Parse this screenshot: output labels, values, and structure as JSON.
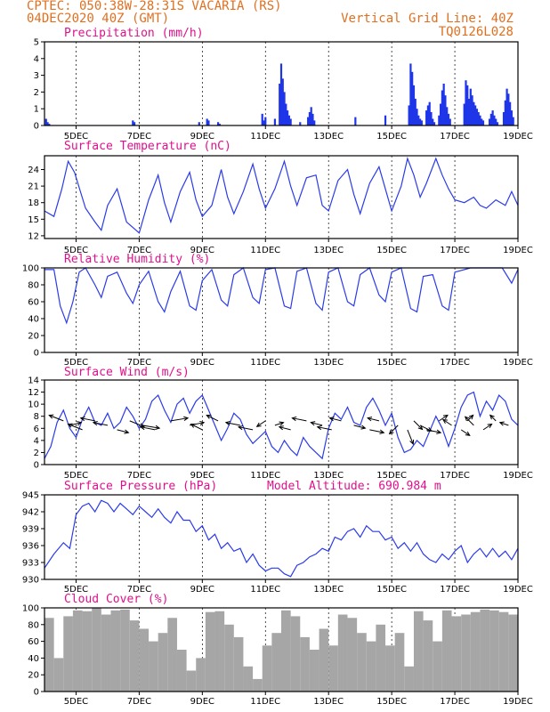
{
  "header": {
    "line1": "CPTEC:   050:38W-28:31S   VACARIA (RS)",
    "line2": "04DEC2020 40Z (GMT)",
    "right1": "Vertical Grid Line: 40Z",
    "right2": "TQ0126L028"
  },
  "colors": {
    "line": "#2b3be8",
    "bars": "#1f35e8",
    "cloud": "#a6a6a6",
    "title": "#e0108c",
    "header": "#e07020"
  },
  "x_axis": {
    "start_day": 4,
    "end_day": 19,
    "tick_days": [
      5,
      7,
      9,
      11,
      13,
      15,
      17,
      19
    ],
    "tick_labels": [
      "5DEC",
      "7DEC",
      "9DEC",
      "11DEC",
      "13DEC",
      "15DEC",
      "17DEC",
      "19DEC"
    ]
  },
  "chart_data": [
    {
      "type": "bar",
      "title": "Precipitation (mm/h)",
      "ylim": [
        0,
        5
      ],
      "yticks": [
        0,
        1,
        2,
        3,
        4,
        5
      ],
      "x": [
        4.05,
        4.1,
        4.15,
        6.8,
        6.85,
        8.9,
        9.15,
        9.2,
        9.5,
        9.55,
        10.9,
        10.95,
        11.0,
        11.3,
        11.45,
        11.5,
        11.55,
        11.6,
        11.65,
        11.7,
        11.75,
        11.8,
        12.1,
        12.35,
        12.4,
        12.45,
        12.5,
        12.55,
        13.85,
        14.8,
        15.55,
        15.6,
        15.65,
        15.7,
        15.75,
        15.8,
        15.85,
        15.9,
        15.95,
        16.1,
        16.15,
        16.2,
        16.25,
        16.3,
        16.35,
        16.5,
        16.55,
        16.6,
        16.65,
        16.7,
        16.75,
        16.8,
        16.85,
        17.3,
        17.35,
        17.4,
        17.45,
        17.5,
        17.55,
        17.6,
        17.65,
        17.7,
        17.75,
        17.8,
        17.85,
        17.9,
        18.1,
        18.15,
        18.2,
        18.25,
        18.3,
        18.35,
        18.55,
        18.6,
        18.65,
        18.7,
        18.75,
        18.8,
        18.85
      ],
      "values": [
        0.4,
        0.2,
        0.1,
        0.3,
        0.2,
        0.2,
        0.4,
        0.3,
        0.2,
        0.1,
        0.7,
        0.3,
        0.5,
        0.4,
        2.5,
        3.7,
        2.8,
        2.0,
        1.3,
        0.9,
        0.6,
        0.4,
        0.2,
        0.5,
        0.8,
        1.1,
        0.7,
        0.3,
        0.5,
        0.6,
        1.2,
        3.7,
        3.2,
        2.4,
        1.6,
        1.0,
        0.6,
        0.4,
        0.3,
        0.9,
        1.2,
        1.4,
        0.8,
        0.4,
        0.2,
        0.6,
        1.3,
        2.1,
        2.5,
        1.8,
        1.1,
        0.7,
        0.4,
        1.3,
        2.7,
        2.4,
        1.6,
        2.2,
        1.8,
        1.4,
        1.2,
        1.0,
        0.8,
        0.6,
        0.4,
        0.3,
        0.4,
        0.7,
        0.9,
        0.6,
        0.4,
        0.2,
        0.8,
        1.5,
        2.2,
        1.9,
        1.4,
        0.9,
        0.5
      ]
    },
    {
      "type": "line",
      "title": "Surface Temperature (nC)",
      "ylim": [
        11.5,
        26.5
      ],
      "yticks": [
        12,
        15,
        18,
        21,
        24
      ],
      "x": [
        4.0,
        4.3,
        4.55,
        4.75,
        4.95,
        5.3,
        5.6,
        5.8,
        6.0,
        6.3,
        6.6,
        6.8,
        7.0,
        7.3,
        7.6,
        7.8,
        8.0,
        8.3,
        8.6,
        8.8,
        9.0,
        9.3,
        9.6,
        9.8,
        10.0,
        10.3,
        10.6,
        10.8,
        11.0,
        11.3,
        11.6,
        11.8,
        12.0,
        12.3,
        12.6,
        12.8,
        13.0,
        13.3,
        13.6,
        13.8,
        14.0,
        14.3,
        14.6,
        14.8,
        15.0,
        15.3,
        15.5,
        15.7,
        15.9,
        16.1,
        16.4,
        16.6,
        16.8,
        17.0,
        17.3,
        17.6,
        17.8,
        18.0,
        18.3,
        18.6,
        18.8,
        19.0
      ],
      "values": [
        16.5,
        15.5,
        20.5,
        25.5,
        23.5,
        17.0,
        14.5,
        13.0,
        17.5,
        20.5,
        14.5,
        13.5,
        12.5,
        18.5,
        23.0,
        18.0,
        14.5,
        20.0,
        23.5,
        18.5,
        15.5,
        17.5,
        24.0,
        19.0,
        16.0,
        20.0,
        25.0,
        20.5,
        17.0,
        20.5,
        25.5,
        21.0,
        17.5,
        22.5,
        23.0,
        17.5,
        16.5,
        22.0,
        24.0,
        19.5,
        16.0,
        21.5,
        24.5,
        20.5,
        16.5,
        21.0,
        26.0,
        23.0,
        19.0,
        21.5,
        26.0,
        23.0,
        20.5,
        18.5,
        18.0,
        19.0,
        17.5,
        17.0,
        18.5,
        17.5,
        20.0,
        17.5
      ]
    },
    {
      "type": "line",
      "title": "Relative Humidity (%)",
      "ylim": [
        0,
        100
      ],
      "yticks": [
        0,
        20,
        40,
        60,
        80,
        100
      ],
      "x": [
        4.0,
        4.3,
        4.5,
        4.7,
        4.9,
        5.1,
        5.3,
        5.6,
        5.8,
        6.0,
        6.3,
        6.6,
        6.8,
        7.0,
        7.3,
        7.6,
        7.8,
        8.0,
        8.3,
        8.6,
        8.8,
        9.0,
        9.3,
        9.6,
        9.8,
        10.0,
        10.3,
        10.6,
        10.8,
        11.0,
        11.3,
        11.6,
        11.8,
        12.0,
        12.3,
        12.6,
        12.8,
        13.0,
        13.3,
        13.6,
        13.8,
        14.0,
        14.3,
        14.6,
        14.8,
        15.0,
        15.3,
        15.6,
        15.8,
        16.0,
        16.3,
        16.6,
        16.8,
        17.0,
        17.5,
        18.0,
        18.5,
        18.8,
        19.0
      ],
      "values": [
        98,
        98,
        55,
        35,
        60,
        95,
        100,
        80,
        65,
        90,
        95,
        70,
        58,
        80,
        96,
        60,
        48,
        72,
        96,
        55,
        50,
        85,
        98,
        62,
        55,
        92,
        100,
        65,
        58,
        98,
        100,
        55,
        52,
        96,
        100,
        58,
        50,
        95,
        100,
        60,
        55,
        92,
        100,
        68,
        60,
        95,
        100,
        52,
        48,
        90,
        92,
        55,
        50,
        95,
        100,
        100,
        100,
        82,
        98
      ]
    },
    {
      "type": "line",
      "title": "Surface Wind (m/s)",
      "ylim": [
        0,
        14
      ],
      "yticks": [
        0,
        2,
        4,
        6,
        8,
        10,
        12,
        14
      ],
      "x": [
        4.0,
        4.2,
        4.4,
        4.6,
        4.8,
        5.0,
        5.2,
        5.4,
        5.6,
        5.8,
        6.0,
        6.2,
        6.4,
        6.6,
        6.8,
        7.0,
        7.2,
        7.4,
        7.6,
        7.8,
        8.0,
        8.2,
        8.4,
        8.6,
        8.8,
        9.0,
        9.2,
        9.4,
        9.6,
        9.8,
        10.0,
        10.2,
        10.4,
        10.6,
        10.8,
        11.0,
        11.2,
        11.4,
        11.6,
        11.8,
        12.0,
        12.2,
        12.4,
        12.6,
        12.8,
        13.0,
        13.2,
        13.4,
        13.6,
        13.8,
        14.0,
        14.2,
        14.4,
        14.6,
        14.8,
        15.0,
        15.2,
        15.4,
        15.6,
        15.8,
        16.0,
        16.2,
        16.4,
        16.6,
        16.8,
        17.0,
        17.2,
        17.4,
        17.6,
        17.8,
        18.0,
        18.2,
        18.4,
        18.6,
        18.8,
        19.0
      ],
      "values": [
        1.0,
        3.0,
        7.0,
        9.0,
        6.0,
        4.5,
        7.5,
        9.5,
        7.0,
        6.5,
        8.5,
        6.0,
        7.0,
        9.5,
        8.0,
        6.0,
        7.5,
        10.5,
        11.5,
        9.0,
        7.0,
        10.0,
        11.0,
        8.5,
        10.5,
        11.5,
        9.0,
        6.5,
        4.0,
        6.0,
        8.5,
        7.5,
        5.0,
        3.5,
        4.5,
        5.5,
        3.0,
        2.0,
        4.0,
        2.5,
        1.5,
        4.5,
        3.0,
        2.0,
        1.0,
        6.0,
        8.5,
        7.5,
        9.5,
        7.0,
        6.5,
        9.5,
        11.0,
        9.0,
        6.5,
        8.5,
        4.5,
        2.0,
        2.5,
        4.0,
        3.0,
        5.5,
        8.0,
        6.0,
        3.0,
        6.0,
        9.5,
        11.5,
        12.0,
        8.0,
        10.5,
        9.0,
        11.5,
        10.5,
        7.5,
        6.5
      ],
      "arrows": {
        "x": [
          4.6,
          4.8,
          5.2,
          5.6,
          6.0,
          6.3,
          6.7,
          7.1,
          7.5,
          8.0,
          8.6,
          9.0,
          9.5,
          10.2,
          10.6,
          11.0,
          11.3,
          11.8,
          12.3,
          12.8,
          13.1,
          13.4,
          13.8,
          14.3,
          14.6,
          15.2,
          15.5,
          15.7,
          15.9,
          16.1,
          16.5,
          16.9,
          17.2,
          17.4,
          17.6,
          17.9,
          18.3,
          18.7
        ],
        "u": [
          -5,
          4,
          -5,
          -5,
          -5,
          4,
          5,
          6,
          -5,
          6,
          5,
          -4,
          -4,
          -5,
          -5,
          -3,
          3,
          -4,
          -5,
          -4,
          -5,
          -4,
          4,
          5,
          -4,
          -3,
          2,
          3,
          4,
          5,
          3,
          -3,
          3,
          2,
          -3,
          3,
          -2,
          -3
        ],
        "v": [
          2,
          1,
          2,
          1,
          1,
          -1,
          -2,
          -1,
          1,
          1,
          1,
          2,
          2,
          1,
          1,
          -2,
          1,
          1,
          1,
          1,
          1,
          1,
          -1,
          -1,
          1,
          -3,
          -5,
          -3,
          -2,
          -1,
          2,
          2,
          -2,
          2,
          3,
          2,
          2,
          1
        ]
      }
    },
    {
      "type": "line",
      "title": "Surface Pressure (hPa)",
      "annotation": "Model Altitude: 690.984 m",
      "ylim": [
        930,
        945
      ],
      "yticks": [
        930,
        933,
        936,
        939,
        942,
        945
      ],
      "x": [
        4.0,
        4.3,
        4.6,
        4.8,
        5.0,
        5.2,
        5.4,
        5.6,
        5.8,
        6.0,
        6.2,
        6.4,
        6.6,
        6.8,
        7.0,
        7.2,
        7.4,
        7.6,
        7.8,
        8.0,
        8.2,
        8.4,
        8.6,
        8.8,
        9.0,
        9.2,
        9.4,
        9.6,
        9.8,
        10.0,
        10.2,
        10.4,
        10.6,
        10.8,
        11.0,
        11.2,
        11.4,
        11.6,
        11.8,
        12.0,
        12.2,
        12.4,
        12.6,
        12.8,
        13.0,
        13.2,
        13.4,
        13.6,
        13.8,
        14.0,
        14.2,
        14.4,
        14.6,
        14.8,
        15.0,
        15.2,
        15.4,
        15.6,
        15.8,
        16.0,
        16.2,
        16.4,
        16.6,
        16.8,
        17.0,
        17.2,
        17.4,
        17.6,
        17.8,
        18.0,
        18.2,
        18.4,
        18.6,
        18.8,
        19.0
      ],
      "values": [
        932.0,
        934.5,
        936.5,
        935.5,
        941.5,
        943.0,
        943.5,
        942.0,
        944.0,
        943.5,
        942.0,
        943.5,
        942.5,
        941.5,
        943.0,
        942.0,
        941.0,
        942.5,
        941.0,
        940.0,
        942.0,
        940.5,
        940.5,
        938.5,
        939.5,
        937.0,
        938.0,
        935.5,
        936.5,
        935.0,
        935.5,
        933.0,
        934.5,
        932.5,
        931.5,
        932.0,
        932.0,
        931.0,
        930.5,
        932.5,
        933.0,
        934.0,
        934.5,
        935.5,
        935.0,
        937.5,
        937.0,
        938.5,
        939.0,
        937.5,
        939.5,
        938.5,
        938.5,
        937.0,
        937.5,
        935.5,
        936.5,
        935.0,
        936.5,
        934.5,
        933.5,
        933.0,
        934.5,
        933.5,
        935.0,
        936.0,
        933.0,
        934.5,
        935.5,
        934.0,
        935.5,
        934.0,
        935.0,
        933.5,
        935.5
      ]
    },
    {
      "type": "bar",
      "title": "Cloud Cover (%)",
      "ylim": [
        0,
        100
      ],
      "yticks": [
        0,
        20,
        40,
        60,
        80,
        100
      ],
      "x": [
        4.0,
        4.3,
        4.6,
        4.9,
        5.2,
        5.5,
        5.8,
        6.1,
        6.4,
        6.7,
        7.0,
        7.3,
        7.6,
        7.9,
        8.2,
        8.5,
        8.8,
        9.1,
        9.4,
        9.7,
        10.0,
        10.3,
        10.6,
        10.9,
        11.2,
        11.5,
        11.8,
        12.1,
        12.4,
        12.7,
        13.0,
        13.3,
        13.6,
        13.9,
        14.2,
        14.5,
        14.8,
        15.1,
        15.4,
        15.7,
        16.0,
        16.3,
        16.6,
        16.9,
        17.2,
        17.5,
        17.8,
        18.1,
        18.4,
        18.7
      ],
      "values": [
        88,
        40,
        90,
        97,
        96,
        100,
        92,
        97,
        98,
        85,
        75,
        60,
        70,
        88,
        50,
        25,
        40,
        95,
        96,
        80,
        65,
        30,
        15,
        55,
        70,
        97,
        90,
        65,
        50,
        75,
        55,
        92,
        88,
        70,
        60,
        80,
        55,
        70,
        30,
        96,
        85,
        60,
        97,
        90,
        92,
        95,
        98,
        97,
        95,
        92
      ]
    }
  ]
}
